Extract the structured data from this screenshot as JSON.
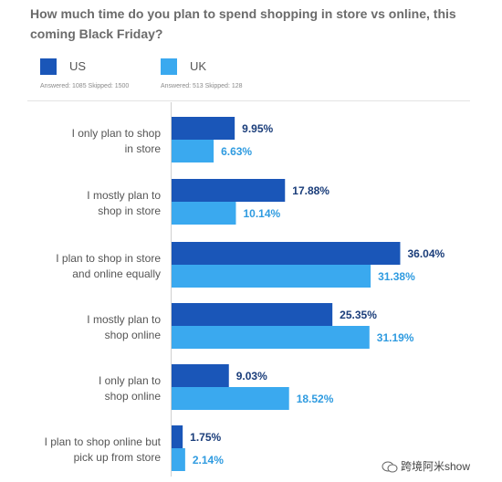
{
  "title": "How much time do you plan to spend shopping in store vs online, this coming Black Friday?",
  "legend": [
    {
      "name": "US",
      "color": "#1a56b8",
      "stats": "Answered: 1085 Skipped: 1500"
    },
    {
      "name": "UK",
      "color": "#3aa9ef",
      "stats": "Answered: 513 Skipped: 128"
    }
  ],
  "chart_data": {
    "type": "bar",
    "orientation": "horizontal",
    "categories": [
      "I only plan to shop in store",
      "I mostly plan to shop in store",
      "I plan to shop in store and online equally",
      "I mostly plan to shop online",
      "I only plan to shop online",
      "I plan to shop online but pick up from store"
    ],
    "series": [
      {
        "name": "US",
        "values": [
          9.95,
          17.88,
          36.04,
          25.35,
          9.03,
          1.75
        ],
        "labels": [
          "9.95%",
          "17.88%",
          "36.04%",
          "25.35%",
          "9.03%",
          "1.75%"
        ]
      },
      {
        "name": "UK",
        "values": [
          6.63,
          10.14,
          31.38,
          31.19,
          18.52,
          2.14
        ],
        "labels": [
          "6.63%",
          "10.14%",
          "31.38%",
          "31.19%",
          "18.52%",
          "2.14%"
        ]
      }
    ],
    "xlim": [
      0,
      40
    ],
    "value_label_colors": {
      "US": "#1a3d7a",
      "UK": "#2f9be0"
    }
  },
  "category_label_lines": [
    [
      "I only plan to shop",
      "in store"
    ],
    [
      "I mostly plan to",
      "shop in store"
    ],
    [
      "I plan to shop in store",
      "and online equally"
    ],
    [
      "I mostly plan to",
      "shop online"
    ],
    [
      "I only plan to",
      "shop online"
    ],
    [
      "I plan to shop online but",
      "pick up from store"
    ]
  ],
  "watermark": {
    "text": "跨境阿米show",
    "icon": "wechat-icon"
  }
}
